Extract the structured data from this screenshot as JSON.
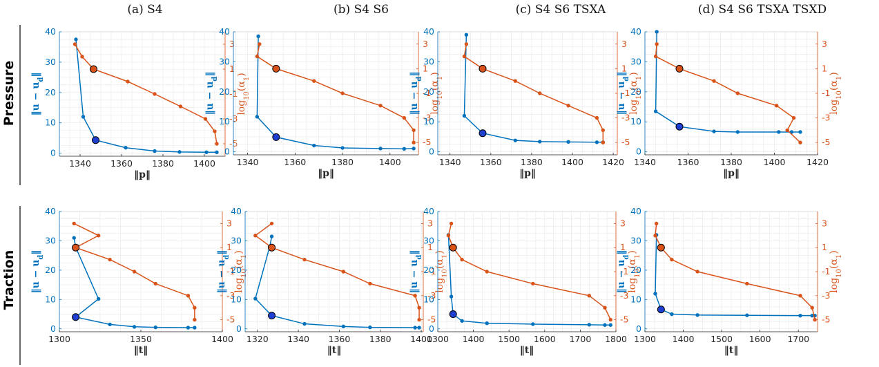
{
  "colors": {
    "blue": "#0072BD",
    "orange": "#D95319",
    "grid": "#E6E6E6",
    "axis": "#262626"
  },
  "column_titles": [
    "(a) S4",
    "(b) S4 S6",
    "(c) S4 S6 TSXA",
    "(d) S4 S6 TSXA TSXD"
  ],
  "row_labels": [
    "Pressure",
    "Traction"
  ],
  "chart_data": [
    {
      "type": "line",
      "row": 0,
      "col": 0,
      "xlabel": "‖p‖",
      "ylabel_left": "‖u − u_d‖",
      "ylabel_right": "log10(α1)",
      "xlim": [
        1330,
        1410
      ],
      "xticks": [
        "1340",
        "1360",
        "1380",
        "1400"
      ],
      "ylim_left": [
        -1,
        40
      ],
      "yticks_left": [
        "0",
        "10",
        "20",
        "30",
        "40"
      ],
      "ylim_right": [
        -6,
        4
      ],
      "yticks_right": [
        "3",
        "1",
        "-1",
        "-3",
        "-5"
      ],
      "series": [
        {
          "axis": "left",
          "x": [
            1338,
            1341.5,
            1347.5,
            1362,
            1376,
            1388,
            1401,
            1406
          ],
          "y": [
            37.5,
            12,
            4.3,
            1.8,
            0.7,
            0.4,
            0.3,
            0.3
          ]
        },
        {
          "axis": "right",
          "x": [
            1337.5,
            1341,
            1346.5,
            1363,
            1376,
            1388.5,
            1400.5,
            1405,
            1406
          ],
          "y": [
            3,
            2,
            1,
            0,
            -1,
            -2,
            -3,
            -4,
            -5
          ]
        }
      ],
      "highlight": [
        {
          "axis": "left",
          "x": 1347.5,
          "y": 4.3
        },
        {
          "axis": "right",
          "x": 1346.5,
          "y": 1
        }
      ]
    },
    {
      "type": "line",
      "row": 0,
      "col": 1,
      "xlabel": "‖p‖",
      "ylabel_left": "‖u − u_d‖",
      "ylabel_right": "log10(α1)",
      "xlim": [
        1334,
        1412
      ],
      "xticks": [
        "1340",
        "1360",
        "1380",
        "1400"
      ],
      "ylim_left": [
        -1,
        40
      ],
      "yticks_left": [
        "0",
        "10",
        "20",
        "30",
        "40"
      ],
      "ylim_right": [
        -6,
        4
      ],
      "yticks_right": [
        "3",
        "1",
        "-1",
        "-3",
        "-5"
      ],
      "series": [
        {
          "axis": "left",
          "x": [
            1344.5,
            1344,
            1352,
            1368,
            1380,
            1396,
            1406,
            1410
          ],
          "y": [
            38.5,
            11.7,
            4.9,
            2.1,
            1.3,
            1.1,
            1.0,
            1.1
          ]
        },
        {
          "axis": "right",
          "x": [
            1345,
            1344,
            1352,
            1368,
            1380,
            1396,
            1406,
            1410,
            1410
          ],
          "y": [
            3,
            2,
            1,
            0,
            -1,
            -2,
            -3,
            -4,
            -5
          ]
        }
      ],
      "highlight": [
        {
          "axis": "left",
          "x": 1352,
          "y": 4.9
        },
        {
          "axis": "right",
          "x": 1352,
          "y": 1
        }
      ]
    },
    {
      "type": "line",
      "row": 0,
      "col": 2,
      "xlabel": "‖p‖",
      "ylabel_left": "‖u − u_d‖",
      "ylabel_right": "log10(α1)",
      "xlim": [
        1334,
        1422
      ],
      "xticks": [
        "1340",
        "1360",
        "1380",
        "1400",
        "1420"
      ],
      "ylim_left": [
        -1,
        40
      ],
      "yticks_left": [
        "0",
        "10",
        "20",
        "30",
        "40"
      ],
      "ylim_right": [
        -6,
        4
      ],
      "yticks_right": [
        "3",
        "1",
        "-1",
        "-3",
        "-5"
      ],
      "series": [
        {
          "axis": "left",
          "x": [
            1348,
            1347,
            1356,
            1372,
            1384,
            1398,
            1412,
            1415
          ],
          "y": [
            39,
            12,
            6.2,
            3.8,
            3.4,
            3.3,
            3.2,
            3.2
          ]
        },
        {
          "axis": "right",
          "x": [
            1348,
            1347,
            1356,
            1372,
            1384,
            1398,
            1412,
            1415,
            1415
          ],
          "y": [
            3,
            2,
            1,
            0,
            -1,
            -2,
            -3,
            -4,
            -5
          ]
        }
      ],
      "highlight": [
        {
          "axis": "left",
          "x": 1356,
          "y": 6.2
        },
        {
          "axis": "right",
          "x": 1356,
          "y": 1
        }
      ]
    },
    {
      "type": "line",
      "row": 0,
      "col": 3,
      "xlabel": "‖p‖",
      "ylabel_left": "‖u − u_d‖",
      "ylabel_right": "log10(α1)",
      "xlim": [
        1340,
        1420
      ],
      "xticks": [
        "1340",
        "1360",
        "1380",
        "1400",
        "1420"
      ],
      "ylim_left": [
        -1,
        40
      ],
      "yticks_left": [
        "0",
        "10",
        "20",
        "30",
        "40"
      ],
      "ylim_right": [
        -6,
        4
      ],
      "yticks_right": [
        "3",
        "1",
        "-1",
        "-3",
        "-5"
      ],
      "series": [
        {
          "axis": "left",
          "x": [
            1345.5,
            1345,
            1356,
            1372,
            1383,
            1402,
            1408,
            1412
          ],
          "y": [
            40,
            13.5,
            8.4,
            6.8,
            6.6,
            6.6,
            6.6,
            6.6
          ]
        },
        {
          "axis": "right",
          "x": [
            1345.5,
            1345,
            1356,
            1372,
            1383,
            1401,
            1409,
            1406,
            1412
          ],
          "y": [
            3,
            2,
            1,
            0,
            -1,
            -2,
            -3,
            -4,
            -5
          ]
        }
      ],
      "highlight": [
        {
          "axis": "left",
          "x": 1356,
          "y": 8.4
        },
        {
          "axis": "right",
          "x": 1356,
          "y": 1
        }
      ]
    },
    {
      "type": "line",
      "row": 1,
      "col": 0,
      "xlabel": "‖t‖",
      "ylabel_left": "‖u − u_d‖",
      "ylabel_right": "log10(α1)",
      "xlim": [
        1300,
        1400
      ],
      "xticks": [
        "1300",
        "1350",
        "1400"
      ],
      "ylim_left": [
        -1,
        40
      ],
      "yticks_left": [
        "0",
        "10",
        "20",
        "30",
        "40"
      ],
      "ylim_right": [
        -6,
        4
      ],
      "yticks_right": [
        "3",
        "1",
        "-1",
        "-3",
        "-5"
      ],
      "series": [
        {
          "axis": "left",
          "x": [
            1309,
            1310,
            1324,
            1310,
            1331,
            1346,
            1359,
            1379,
            1383
          ],
          "y": [
            31,
            27.8,
            10.2,
            4.0,
            1.5,
            0.7,
            0.5,
            0.4,
            0.4
          ]
        },
        {
          "axis": "right",
          "x": [
            1309,
            1324,
            1310,
            1331,
            1346,
            1359,
            1379,
            1383,
            1383
          ],
          "y": [
            3,
            2,
            1,
            0,
            -1,
            -2,
            -3,
            -4,
            -5
          ]
        }
      ],
      "highlight": [
        {
          "axis": "left",
          "x": 1310,
          "y": 4.0
        },
        {
          "axis": "right",
          "x": 1310,
          "y": 1
        }
      ]
    },
    {
      "type": "line",
      "row": 1,
      "col": 1,
      "xlabel": "‖t‖",
      "ylabel_left": "‖u − u_d‖",
      "ylabel_right": "log10(α1)",
      "xlim": [
        1314,
        1401
      ],
      "xticks": [
        "1320",
        "1340",
        "1360",
        "1380",
        "1400"
      ],
      "ylim_left": [
        -1,
        40
      ],
      "yticks_left": [
        "0",
        "10",
        "20",
        "30",
        "40"
      ],
      "ylim_right": [
        -6,
        4
      ],
      "yticks_right": [
        "3",
        "1",
        "-1",
        "-3",
        "-5"
      ],
      "series": [
        {
          "axis": "left",
          "x": [
            1327,
            1326,
            1319,
            1327,
            1343,
            1362,
            1375,
            1397,
            1399
          ],
          "y": [
            31.5,
            28,
            10.3,
            4.5,
            1.7,
            0.8,
            0.5,
            0.4,
            0.4
          ]
        },
        {
          "axis": "right",
          "x": [
            1327,
            1319,
            1327,
            1343,
            1362,
            1375,
            1397,
            1399,
            1399
          ],
          "y": [
            3,
            2,
            1,
            0,
            -1,
            -2,
            -3,
            -4,
            -5
          ]
        }
      ],
      "highlight": [
        {
          "axis": "left",
          "x": 1327,
          "y": 4.5
        },
        {
          "axis": "right",
          "x": 1327,
          "y": 1
        }
      ]
    },
    {
      "type": "line",
      "row": 1,
      "col": 2,
      "xlabel": "‖t‖",
      "ylabel_left": "‖u − u_d‖",
      "ylabel_right": "log10(α1)",
      "xlim": [
        1300,
        1800
      ],
      "xticks": [
        "1300",
        "1400",
        "1500",
        "1600",
        "1700",
        "1800"
      ],
      "ylim_left": [
        -1,
        40
      ],
      "yticks_left": [
        "0",
        "10",
        "20",
        "30",
        "40"
      ],
      "ylim_right": [
        -6,
        4
      ],
      "yticks_right": [
        "3",
        "1",
        "-1",
        "-3",
        "-5"
      ],
      "series": [
        {
          "axis": "left",
          "x": [
            1330,
            1338,
            1343,
            1368,
            1438,
            1567,
            1725,
            1769,
            1785
          ],
          "y": [
            32,
            11,
            5.0,
            2.7,
            1.9,
            1.6,
            1.4,
            1.3,
            1.3
          ]
        },
        {
          "axis": "right",
          "x": [
            1338,
            1330,
            1343,
            1368,
            1438,
            1567,
            1725,
            1769,
            1785
          ],
          "y": [
            3,
            2,
            1,
            0,
            -1,
            -2,
            -3,
            -4,
            -5
          ]
        }
      ],
      "highlight": [
        {
          "axis": "left",
          "x": 1343,
          "y": 5.0
        },
        {
          "axis": "right",
          "x": 1343,
          "y": 1
        }
      ]
    },
    {
      "type": "line",
      "row": 1,
      "col": 3,
      "xlabel": "‖t‖",
      "ylabel_left": "‖u − u_d‖",
      "ylabel_right": "log10(α1)",
      "xlim": [
        1300,
        1750
      ],
      "xticks": [
        "1300",
        "1400",
        "1500",
        "1600",
        "1700"
      ],
      "ylim_left": [
        -1,
        40
      ],
      "yticks_left": [
        "0",
        "10",
        "20",
        "30",
        "40"
      ],
      "ylim_right": [
        -6,
        4
      ],
      "yticks_right": [
        "3",
        "1",
        "-1",
        "-3",
        "-5"
      ],
      "series": [
        {
          "axis": "left",
          "x": [
            1330,
            1327,
            1342,
            1370,
            1437,
            1566,
            1705,
            1736,
            1743
          ],
          "y": [
            32,
            12,
            6.6,
            5.0,
            4.7,
            4.6,
            4.5,
            4.5,
            4.5
          ]
        },
        {
          "axis": "right",
          "x": [
            1330,
            1327,
            1342,
            1370,
            1437,
            1566,
            1705,
            1736,
            1743
          ],
          "y": [
            3,
            2,
            1,
            0,
            -1,
            -2,
            -3,
            -4,
            -5
          ]
        }
      ],
      "highlight": [
        {
          "axis": "left",
          "x": 1342,
          "y": 6.6
        },
        {
          "axis": "right",
          "x": 1342,
          "y": 1
        }
      ]
    }
  ]
}
